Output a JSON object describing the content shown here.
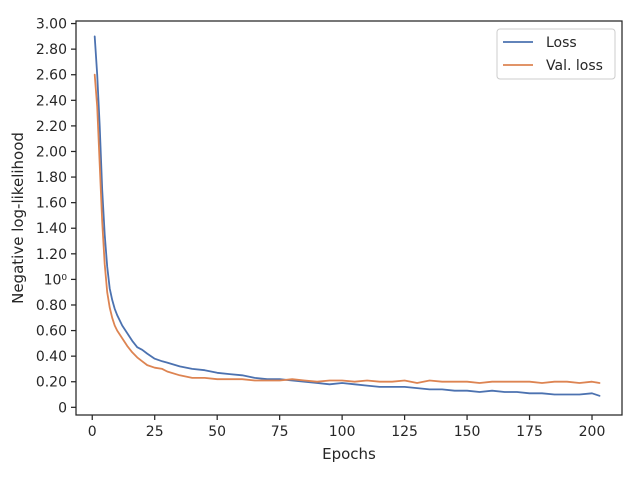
{
  "chart_data": {
    "type": "line",
    "title": "",
    "xlabel": "Epochs",
    "ylabel": "Negative log-likelihood",
    "xlim": [
      -6.5,
      212
    ],
    "ylim": [
      -0.06,
      3.02
    ],
    "grid": false,
    "legend_position": "top-right",
    "x_ticks": [
      {
        "value": 0,
        "label": "0"
      },
      {
        "value": 25,
        "label": "25"
      },
      {
        "value": 50,
        "label": "50"
      },
      {
        "value": 75,
        "label": "75"
      },
      {
        "value": 100,
        "label": "100"
      },
      {
        "value": 125,
        "label": "125"
      },
      {
        "value": 150,
        "label": "150"
      },
      {
        "value": 175,
        "label": "175"
      },
      {
        "value": 200,
        "label": "200"
      }
    ],
    "y_ticks": [
      {
        "value": 0.0,
        "label": "0"
      },
      {
        "value": 0.2,
        "label": "0.20"
      },
      {
        "value": 0.4,
        "label": "0.40"
      },
      {
        "value": 0.6,
        "label": "0.60"
      },
      {
        "value": 0.8,
        "label": "0.80"
      },
      {
        "value": 1.0,
        "label": "10⁰"
      },
      {
        "value": 1.2,
        "label": "1.20"
      },
      {
        "value": 1.4,
        "label": "1.40"
      },
      {
        "value": 1.6,
        "label": "1.60"
      },
      {
        "value": 1.8,
        "label": "1.80"
      },
      {
        "value": 2.0,
        "label": "2.00"
      },
      {
        "value": 2.2,
        "label": "2.20"
      },
      {
        "value": 2.4,
        "label": "2.40"
      },
      {
        "value": 2.6,
        "label": "2.60"
      },
      {
        "value": 2.8,
        "label": "2.80"
      },
      {
        "value": 3.0,
        "label": "3.00"
      }
    ],
    "series": [
      {
        "name": "Loss",
        "color": "#4c72b0",
        "x": [
          1,
          2,
          3,
          4,
          5,
          6,
          7,
          8,
          9,
          10,
          12,
          14,
          16,
          18,
          20,
          22,
          25,
          28,
          30,
          35,
          40,
          45,
          50,
          55,
          60,
          65,
          70,
          75,
          80,
          85,
          90,
          95,
          100,
          105,
          110,
          115,
          120,
          125,
          130,
          135,
          140,
          145,
          150,
          155,
          160,
          165,
          170,
          175,
          180,
          185,
          190,
          195,
          200,
          203
        ],
        "y": [
          2.9,
          2.6,
          2.2,
          1.7,
          1.35,
          1.1,
          0.93,
          0.84,
          0.77,
          0.72,
          0.64,
          0.58,
          0.52,
          0.47,
          0.45,
          0.42,
          0.38,
          0.36,
          0.35,
          0.32,
          0.3,
          0.29,
          0.27,
          0.26,
          0.25,
          0.23,
          0.22,
          0.22,
          0.21,
          0.2,
          0.19,
          0.18,
          0.19,
          0.18,
          0.17,
          0.16,
          0.16,
          0.16,
          0.15,
          0.14,
          0.14,
          0.13,
          0.13,
          0.12,
          0.13,
          0.12,
          0.12,
          0.11,
          0.11,
          0.1,
          0.1,
          0.1,
          0.11,
          0.09
        ]
      },
      {
        "name": "Val. loss",
        "color": "#dd8452",
        "x": [
          1,
          2,
          3,
          4,
          5,
          6,
          7,
          8,
          9,
          10,
          12,
          14,
          16,
          18,
          20,
          22,
          25,
          28,
          30,
          35,
          40,
          45,
          50,
          55,
          60,
          65,
          70,
          75,
          80,
          85,
          90,
          95,
          100,
          105,
          110,
          115,
          120,
          125,
          130,
          135,
          140,
          145,
          150,
          155,
          160,
          165,
          170,
          175,
          180,
          185,
          190,
          195,
          200,
          203
        ],
        "y": [
          2.6,
          2.35,
          1.9,
          1.45,
          1.12,
          0.9,
          0.78,
          0.7,
          0.64,
          0.6,
          0.54,
          0.48,
          0.43,
          0.39,
          0.36,
          0.33,
          0.31,
          0.3,
          0.28,
          0.25,
          0.23,
          0.23,
          0.22,
          0.22,
          0.22,
          0.21,
          0.21,
          0.21,
          0.22,
          0.21,
          0.2,
          0.21,
          0.21,
          0.2,
          0.21,
          0.2,
          0.2,
          0.21,
          0.19,
          0.21,
          0.2,
          0.2,
          0.2,
          0.19,
          0.2,
          0.2,
          0.2,
          0.2,
          0.19,
          0.2,
          0.2,
          0.19,
          0.2,
          0.19
        ]
      }
    ]
  }
}
